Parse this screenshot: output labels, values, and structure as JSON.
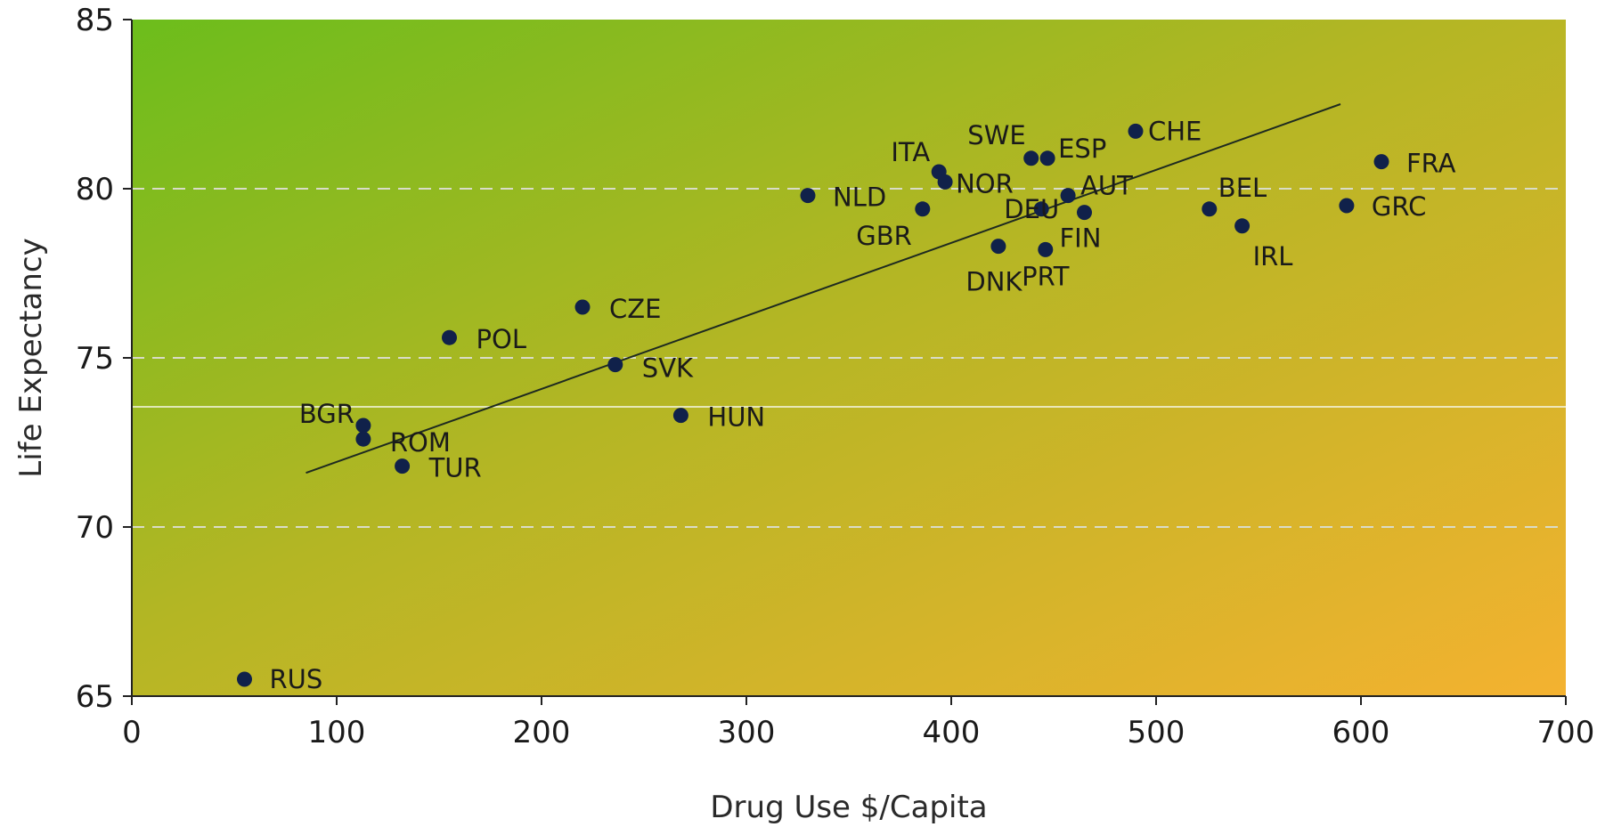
{
  "chart_data": {
    "type": "scatter",
    "title": "",
    "xlabel": "Drug Use $/Capita",
    "ylabel": "Life Expectancy",
    "xlim": [
      0,
      700
    ],
    "ylim": [
      65,
      85
    ],
    "xticks": [
      "0",
      "100",
      "200",
      "300",
      "400",
      "500",
      "600",
      "700"
    ],
    "yticks": [
      "65",
      "70",
      "75",
      "80",
      "85"
    ],
    "grid": "horizontal-dashed",
    "legend": "none",
    "background_gradient": [
      "#6fbd1e",
      "#f2b32e"
    ],
    "point_color": "#10214a",
    "trendline": {
      "x": [
        85,
        590
      ],
      "y": [
        71.6,
        82.5
      ]
    },
    "points": [
      {
        "label": "RUS",
        "x": 55,
        "y": 65.5
      },
      {
        "label": "BGR",
        "x": 113,
        "y": 73.0
      },
      {
        "label": "ROM",
        "x": 113,
        "y": 72.6
      },
      {
        "label": "TUR",
        "x": 132,
        "y": 71.8
      },
      {
        "label": "POL",
        "x": 155,
        "y": 75.6
      },
      {
        "label": "CZE",
        "x": 220,
        "y": 76.5
      },
      {
        "label": "SVK",
        "x": 236,
        "y": 74.8
      },
      {
        "label": "HUN",
        "x": 268,
        "y": 73.3
      },
      {
        "label": "NLD",
        "x": 330,
        "y": 79.8
      },
      {
        "label": "GBR",
        "x": 386,
        "y": 79.4
      },
      {
        "label": "ITA",
        "x": 394,
        "y": 80.5
      },
      {
        "label": "NOR",
        "x": 397,
        "y": 80.2
      },
      {
        "label": "DNK",
        "x": 423,
        "y": 78.3
      },
      {
        "label": "SWE",
        "x": 439,
        "y": 80.9
      },
      {
        "label": "DEU",
        "x": 444,
        "y": 79.4
      },
      {
        "label": "PRT",
        "x": 446,
        "y": 78.2
      },
      {
        "label": "ESP",
        "x": 447,
        "y": 80.9
      },
      {
        "label": "AUT",
        "x": 457,
        "y": 79.8
      },
      {
        "label": "FIN",
        "x": 465,
        "y": 79.3
      },
      {
        "label": "CHE",
        "x": 490,
        "y": 81.7
      },
      {
        "label": "BEL",
        "x": 526,
        "y": 79.4
      },
      {
        "label": "IRL",
        "x": 542,
        "y": 78.9
      },
      {
        "label": "GRC",
        "x": 593,
        "y": 79.5
      },
      {
        "label": "FRA",
        "x": 610,
        "y": 80.8
      }
    ]
  }
}
